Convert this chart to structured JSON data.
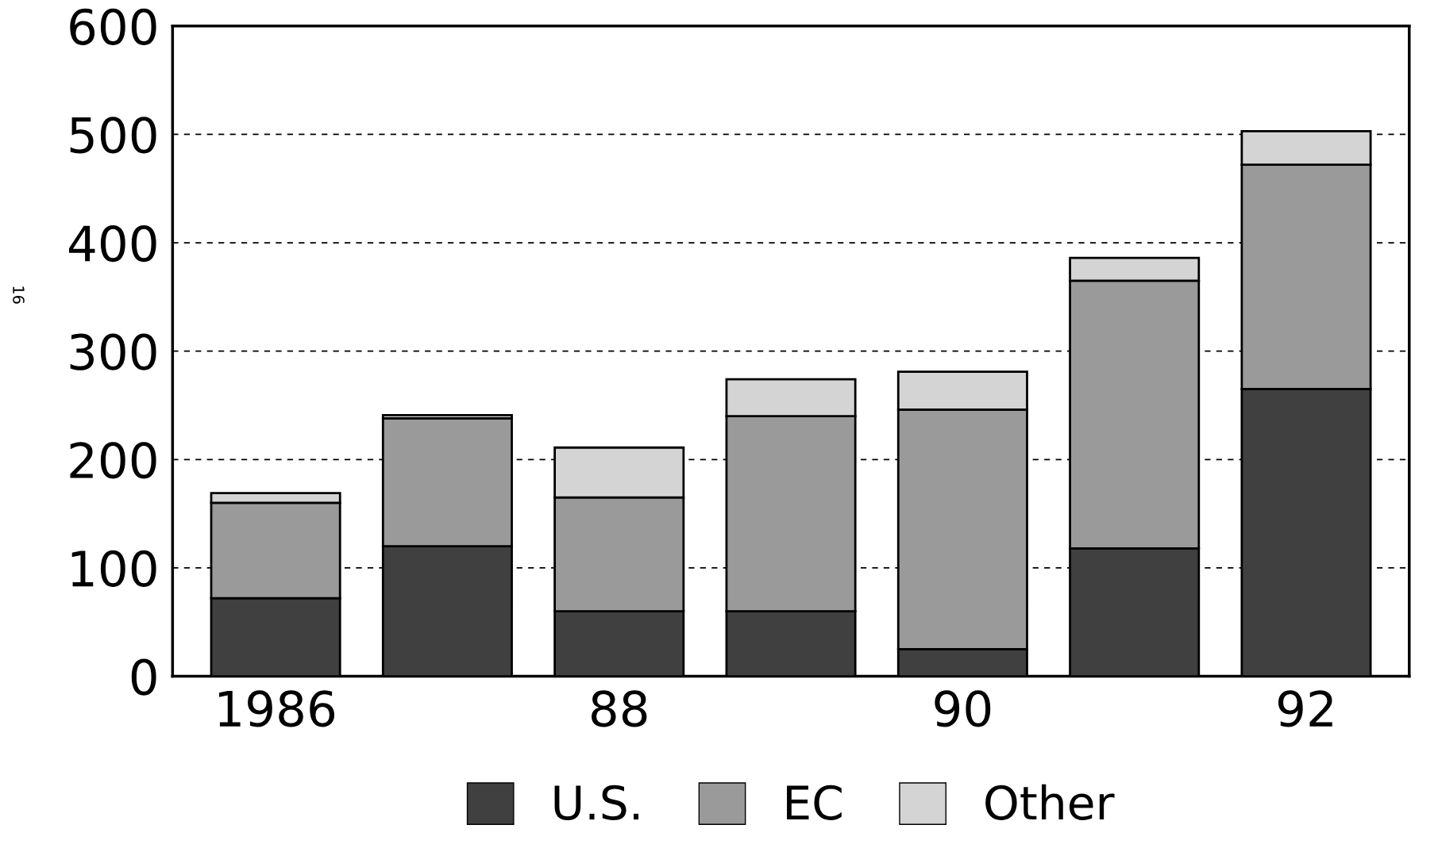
{
  "chart_data": {
    "type": "bar",
    "stacked": true,
    "categories": [
      "1986",
      null,
      "88",
      null,
      "90",
      null,
      "92"
    ],
    "series": [
      {
        "name": "U.S.",
        "color": "#404040",
        "values": [
          72,
          120,
          60,
          60,
          25,
          118,
          265
        ]
      },
      {
        "name": "EC",
        "color": "#9a9a9a",
        "values": [
          88,
          118,
          105,
          180,
          221,
          247,
          207
        ]
      },
      {
        "name": "Other",
        "color": "#d4d4d4",
        "values": [
          9,
          3,
          46,
          34,
          35,
          21,
          31
        ]
      }
    ],
    "ylim": [
      0,
      600
    ],
    "yticks": [
      0,
      100,
      200,
      300,
      400,
      500,
      600
    ],
    "grid": "y",
    "legend": "bottom",
    "annotations": [
      "16"
    ]
  }
}
